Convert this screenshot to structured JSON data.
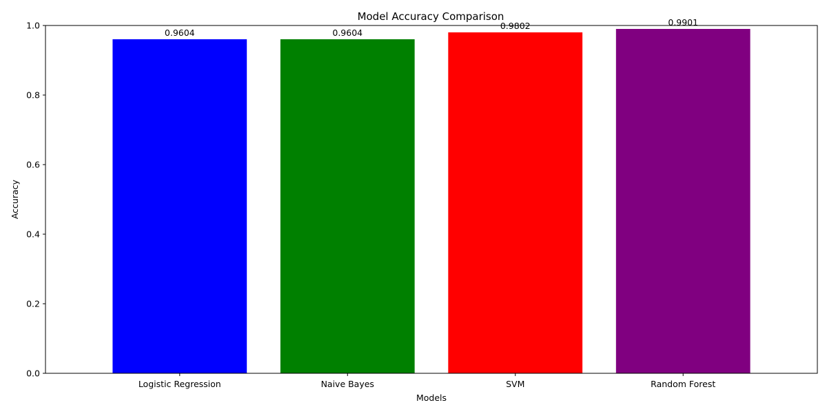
{
  "chart_data": {
    "type": "bar",
    "title": "Model Accuracy Comparison",
    "xlabel": "Models",
    "ylabel": "Accuracy",
    "categories": [
      "Logistic Regression",
      "Naive Bayes",
      "SVM",
      "Random Forest"
    ],
    "values": [
      0.9604,
      0.9604,
      0.9802,
      0.9901
    ],
    "data_labels": [
      "0.9604",
      "0.9604",
      "0.9802",
      "0.9901"
    ],
    "bar_colors": [
      "#0000ff",
      "#008000",
      "#ff0000",
      "#800080"
    ],
    "ylim": [
      0,
      1
    ],
    "yticks": [
      0.0,
      0.2,
      0.4,
      0.6,
      0.8,
      1.0
    ],
    "ytick_labels": [
      "0.0",
      "0.2",
      "0.4",
      "0.6",
      "0.8",
      "1.0"
    ],
    "grid": false,
    "legend": "none"
  }
}
